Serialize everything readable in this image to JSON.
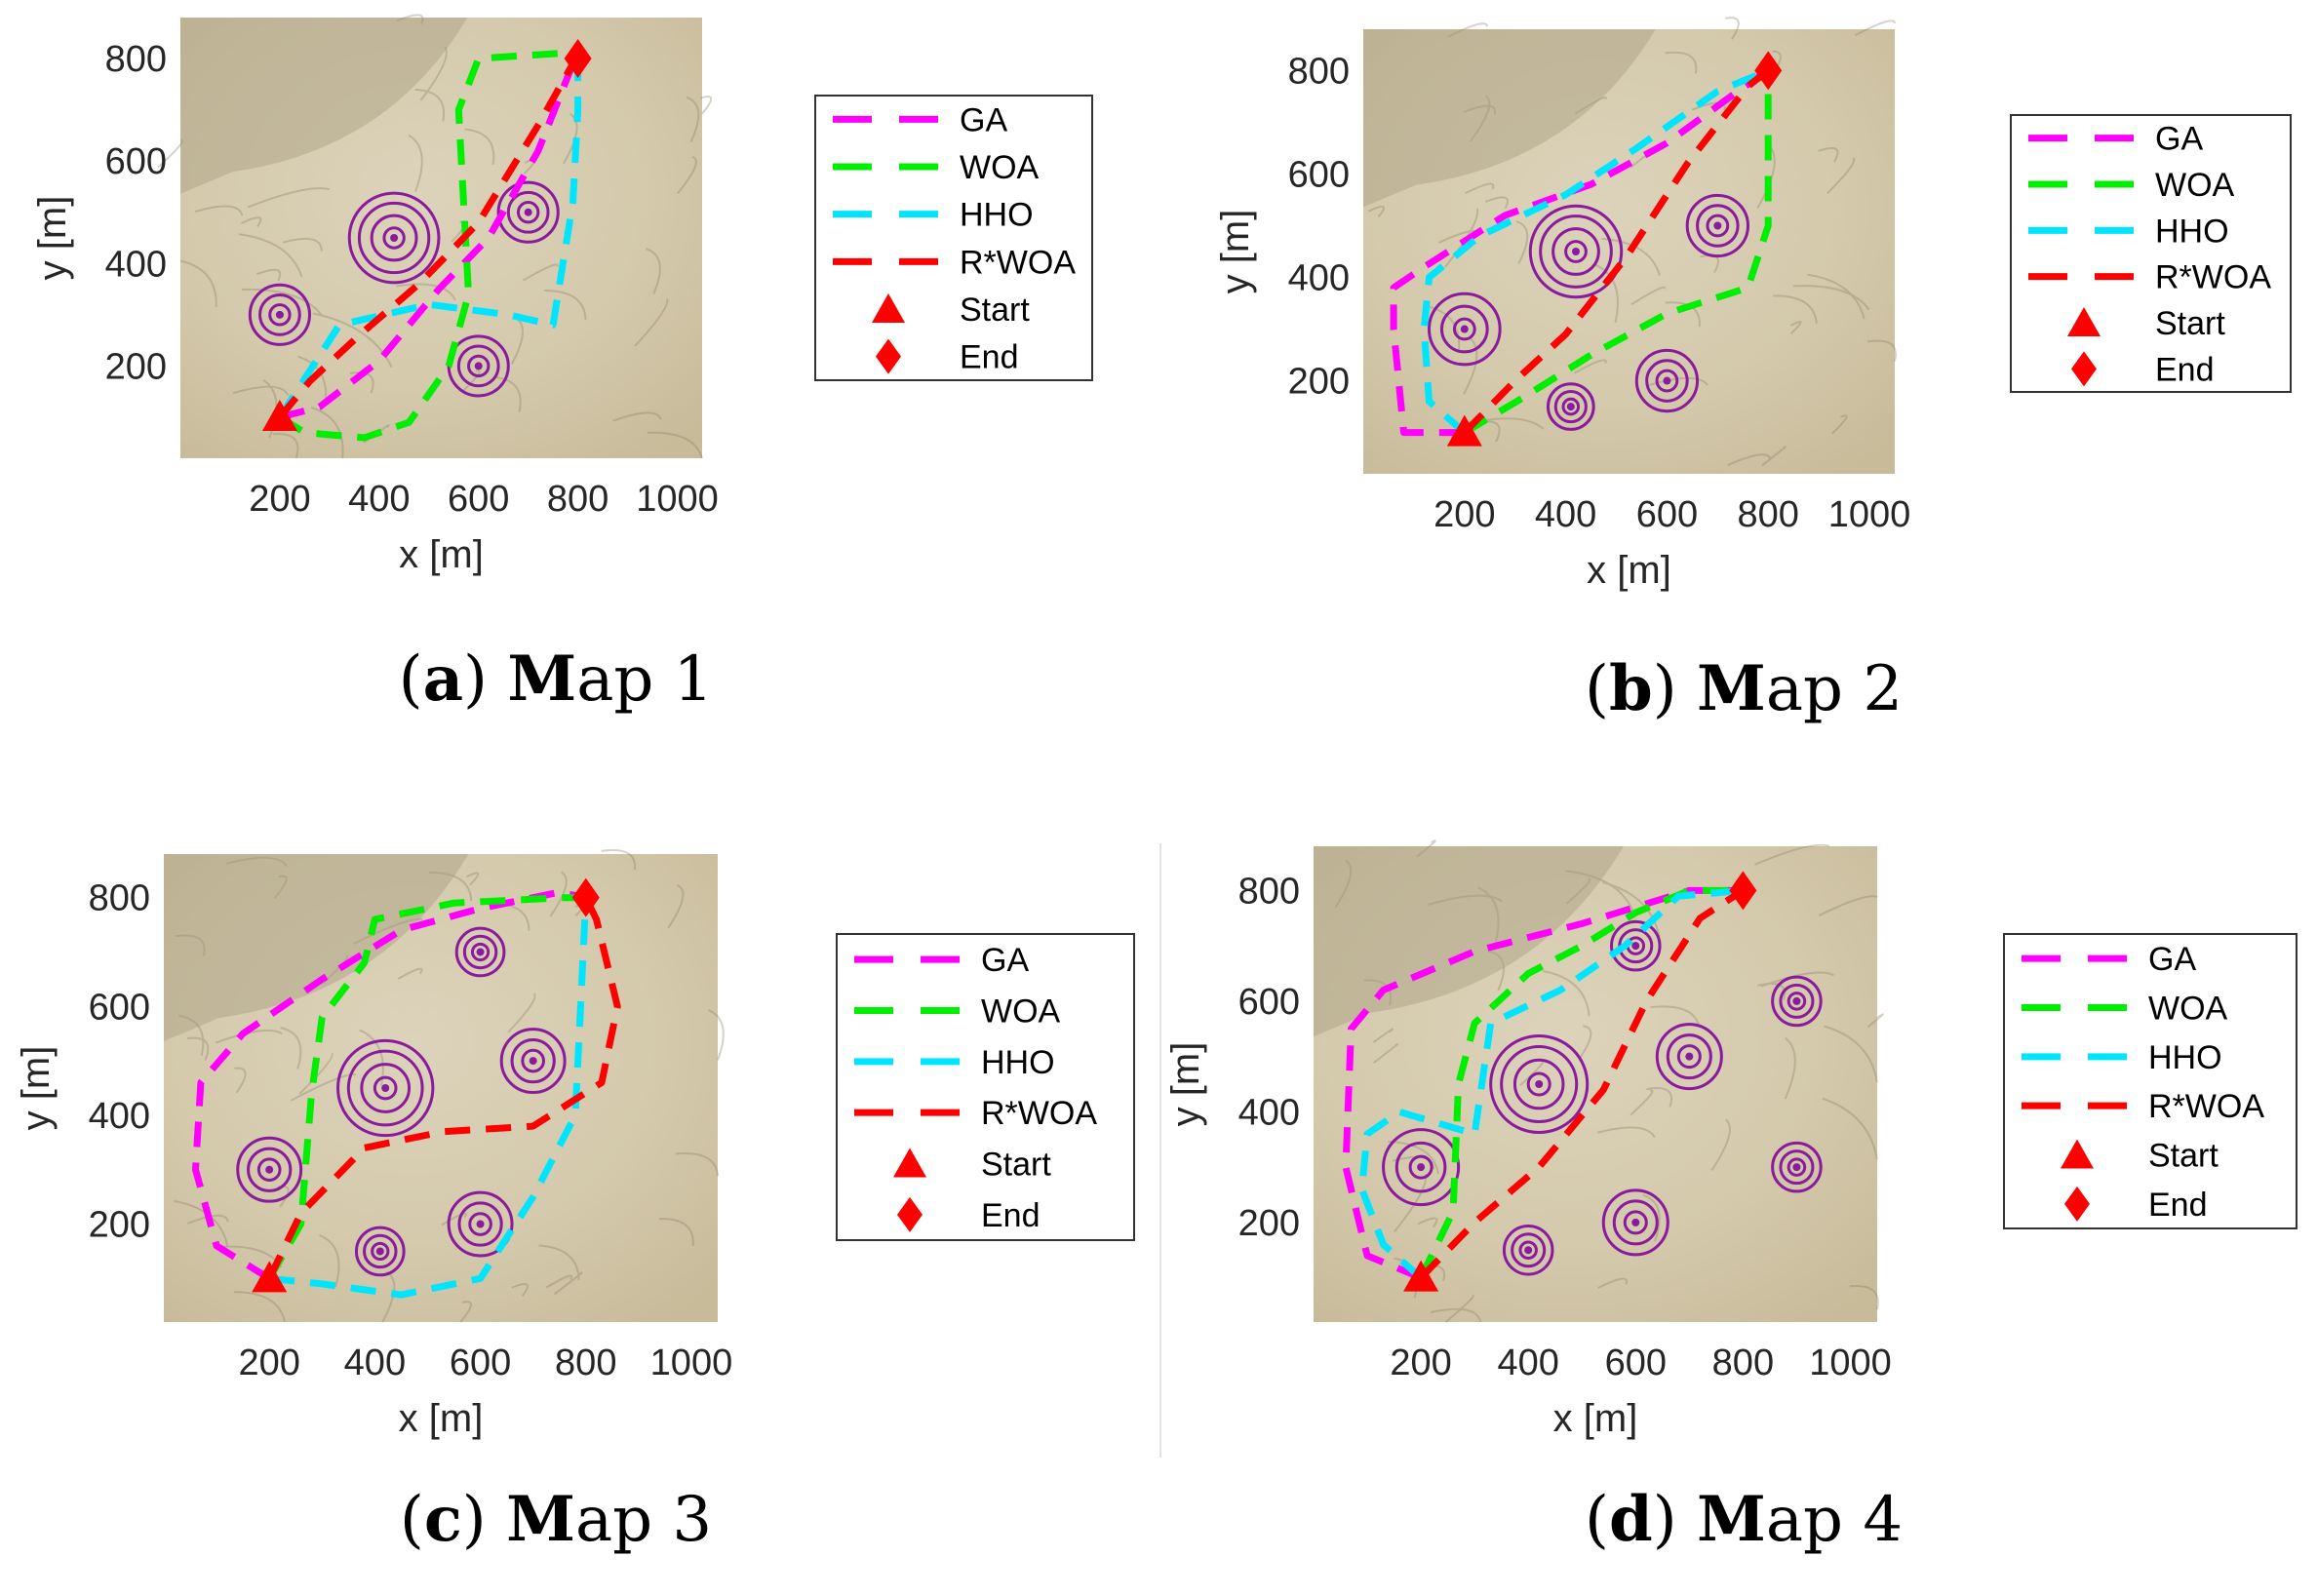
{
  "colors": {
    "GA": "#ff00ff",
    "WOA": "#00ee00",
    "HHO": "#00e5ff",
    "R*WOA": "#ff0000",
    "threat": "#8a1a9e",
    "terrain": "#d8ceb2"
  },
  "chart_data": [
    {
      "type": "line",
      "caption": {
        "open": "(",
        "letter": "a",
        "close": ") ",
        "bold": "M",
        "rest": "ap 1"
      },
      "xlabel": "x [m]",
      "ylabel": "y [m]",
      "xlim": [
        0,
        1050
      ],
      "ylim": [
        20,
        880
      ],
      "xticks": [
        200,
        400,
        600,
        800,
        1000
      ],
      "yticks": [
        200,
        400,
        600,
        800
      ],
      "legend_position": "right",
      "start": {
        "x": 200,
        "y": 100
      },
      "end": {
        "x": 800,
        "y": 800
      },
      "threats": [
        {
          "x": 200,
          "y": 300,
          "rings": [
            20,
            40,
            60
          ]
        },
        {
          "x": 430,
          "y": 450,
          "rings": [
            20,
            45,
            70,
            90
          ]
        },
        {
          "x": 600,
          "y": 200,
          "rings": [
            20,
            40,
            60
          ]
        },
        {
          "x": 700,
          "y": 500,
          "rings": [
            20,
            40,
            60
          ]
        }
      ],
      "series": [
        {
          "name": "GA",
          "points": [
            [
              200,
              100
            ],
            [
              280,
              120
            ],
            [
              400,
              210
            ],
            [
              520,
              350
            ],
            [
              620,
              450
            ],
            [
              720,
              620
            ],
            [
              790,
              790
            ],
            [
              800,
              800
            ]
          ]
        },
        {
          "name": "WOA",
          "points": [
            [
              200,
              100
            ],
            [
              250,
              70
            ],
            [
              370,
              60
            ],
            [
              460,
              90
            ],
            [
              540,
              200
            ],
            [
              580,
              340
            ],
            [
              560,
              700
            ],
            [
              600,
              800
            ],
            [
              760,
              810
            ],
            [
              800,
              800
            ]
          ]
        },
        {
          "name": "HHO",
          "points": [
            [
              200,
              100
            ],
            [
              240,
              160
            ],
            [
              320,
              280
            ],
            [
              500,
              320
            ],
            [
              660,
              300
            ],
            [
              750,
              280
            ],
            [
              790,
              520
            ],
            [
              800,
              700
            ],
            [
              800,
              800
            ]
          ]
        },
        {
          "name": "R*WOA",
          "points": [
            [
              200,
              100
            ],
            [
              260,
              170
            ],
            [
              360,
              260
            ],
            [
              480,
              360
            ],
            [
              600,
              480
            ],
            [
              720,
              670
            ],
            [
              790,
              790
            ],
            [
              800,
              800
            ]
          ]
        }
      ],
      "legend": [
        "GA",
        "WOA",
        "HHO",
        "R*WOA",
        "Start",
        "End"
      ]
    },
    {
      "type": "line",
      "caption": {
        "open": "(",
        "letter": "b",
        "close": ") ",
        "bold": "M",
        "rest": "ap 2"
      },
      "xlabel": "x [m]",
      "ylabel": "y [m]",
      "xlim": [
        0,
        1050
      ],
      "ylim": [
        20,
        880
      ],
      "xticks": [
        200,
        400,
        600,
        800,
        1000
      ],
      "yticks": [
        200,
        400,
        600,
        800
      ],
      "legend_position": "right",
      "start": {
        "x": 200,
        "y": 100
      },
      "end": {
        "x": 800,
        "y": 800
      },
      "threats": [
        {
          "x": 200,
          "y": 300,
          "rings": [
            20,
            45,
            70
          ]
        },
        {
          "x": 420,
          "y": 450,
          "rings": [
            20,
            45,
            70,
            90
          ]
        },
        {
          "x": 410,
          "y": 150,
          "rings": [
            15,
            30,
            45
          ]
        },
        {
          "x": 600,
          "y": 200,
          "rings": [
            20,
            40,
            60
          ]
        },
        {
          "x": 700,
          "y": 500,
          "rings": [
            20,
            40,
            60
          ]
        }
      ],
      "series": [
        {
          "name": "GA",
          "points": [
            [
              200,
              100
            ],
            [
              80,
              100
            ],
            [
              60,
              300
            ],
            [
              60,
              380
            ],
            [
              120,
              420
            ],
            [
              280,
              520
            ],
            [
              450,
              580
            ],
            [
              600,
              660
            ],
            [
              740,
              760
            ],
            [
              800,
              800
            ]
          ]
        },
        {
          "name": "WOA",
          "points": [
            [
              200,
              100
            ],
            [
              320,
              170
            ],
            [
              450,
              250
            ],
            [
              600,
              330
            ],
            [
              760,
              380
            ],
            [
              800,
              500
            ],
            [
              800,
              800
            ]
          ]
        },
        {
          "name": "HHO",
          "points": [
            [
              200,
              100
            ],
            [
              130,
              160
            ],
            [
              120,
              300
            ],
            [
              130,
              400
            ],
            [
              230,
              480
            ],
            [
              400,
              560
            ],
            [
              540,
              650
            ],
            [
              700,
              760
            ],
            [
              800,
              800
            ]
          ]
        },
        {
          "name": "R*WOA",
          "points": [
            [
              200,
              100
            ],
            [
              300,
              200
            ],
            [
              400,
              290
            ],
            [
              520,
              440
            ],
            [
              640,
              620
            ],
            [
              760,
              770
            ],
            [
              800,
              800
            ]
          ]
        }
      ],
      "legend": [
        "GA",
        "WOA",
        "HHO",
        "R*WOA",
        "Start",
        "End"
      ]
    },
    {
      "type": "line",
      "caption": {
        "open": "(",
        "letter": "c",
        "close": ") ",
        "bold": "M",
        "rest": "ap 3"
      },
      "xlabel": "x [m]",
      "ylabel": "y [m]",
      "xlim": [
        0,
        1050
      ],
      "ylim": [
        20,
        880
      ],
      "xticks": [
        200,
        400,
        600,
        800,
        1000
      ],
      "yticks": [
        200,
        400,
        600,
        800
      ],
      "legend_position": "right",
      "start": {
        "x": 200,
        "y": 100
      },
      "end": {
        "x": 800,
        "y": 800
      },
      "threats": [
        {
          "x": 200,
          "y": 300,
          "rings": [
            20,
            40,
            60
          ]
        },
        {
          "x": 420,
          "y": 450,
          "rings": [
            20,
            45,
            70,
            90
          ]
        },
        {
          "x": 410,
          "y": 150,
          "rings": [
            15,
            30,
            45
          ]
        },
        {
          "x": 600,
          "y": 200,
          "rings": [
            20,
            40,
            60
          ]
        },
        {
          "x": 600,
          "y": 700,
          "rings": [
            15,
            30,
            45
          ]
        },
        {
          "x": 700,
          "y": 500,
          "rings": [
            20,
            40,
            60
          ]
        }
      ],
      "series": [
        {
          "name": "GA",
          "points": [
            [
              200,
              100
            ],
            [
              100,
              160
            ],
            [
              60,
              300
            ],
            [
              70,
              460
            ],
            [
              150,
              550
            ],
            [
              300,
              650
            ],
            [
              450,
              740
            ],
            [
              600,
              780
            ],
            [
              750,
              810
            ],
            [
              800,
              800
            ]
          ]
        },
        {
          "name": "WOA",
          "points": [
            [
              200,
              100
            ],
            [
              260,
              200
            ],
            [
              280,
              440
            ],
            [
              300,
              580
            ],
            [
              380,
              680
            ],
            [
              400,
              760
            ],
            [
              550,
              790
            ],
            [
              760,
              800
            ],
            [
              800,
              800
            ]
          ]
        },
        {
          "name": "HHO",
          "points": [
            [
              200,
              100
            ],
            [
              300,
              90
            ],
            [
              450,
              70
            ],
            [
              600,
              100
            ],
            [
              700,
              250
            ],
            [
              780,
              400
            ],
            [
              790,
              600
            ],
            [
              800,
              800
            ]
          ]
        },
        {
          "name": "R*WOA",
          "points": [
            [
              200,
              100
            ],
            [
              260,
              220
            ],
            [
              380,
              340
            ],
            [
              530,
              370
            ],
            [
              700,
              380
            ],
            [
              830,
              460
            ],
            [
              860,
              600
            ],
            [
              820,
              760
            ],
            [
              800,
              800
            ]
          ]
        }
      ],
      "legend": [
        "GA",
        "WOA",
        "HHO",
        "R*WOA",
        "Start",
        "End"
      ]
    },
    {
      "type": "line",
      "caption": {
        "open": "(",
        "letter": "d",
        "close": ") ",
        "bold": "M",
        "rest": "ap 4"
      },
      "xlabel": "x [m]",
      "ylabel": "y [m]",
      "xlim": [
        0,
        1050
      ],
      "ylim": [
        20,
        880
      ],
      "xticks": [
        200,
        400,
        600,
        800,
        1000
      ],
      "yticks": [
        200,
        400,
        600,
        800
      ],
      "legend_position": "right",
      "start": {
        "x": 200,
        "y": 100
      },
      "end": {
        "x": 800,
        "y": 800
      },
      "threats": [
        {
          "x": 200,
          "y": 300,
          "rings": [
            20,
            45,
            70
          ]
        },
        {
          "x": 420,
          "y": 450,
          "rings": [
            20,
            45,
            70,
            90
          ]
        },
        {
          "x": 400,
          "y": 150,
          "rings": [
            15,
            30,
            45
          ]
        },
        {
          "x": 600,
          "y": 200,
          "rings": [
            20,
            40,
            60
          ]
        },
        {
          "x": 600,
          "y": 700,
          "rings": [
            15,
            30,
            45
          ]
        },
        {
          "x": 700,
          "y": 500,
          "rings": [
            20,
            40,
            60
          ]
        },
        {
          "x": 900,
          "y": 600,
          "rings": [
            15,
            30,
            45
          ]
        },
        {
          "x": 900,
          "y": 300,
          "rings": [
            15,
            30,
            45
          ]
        }
      ],
      "series": [
        {
          "name": "GA",
          "points": [
            [
              200,
              100
            ],
            [
              100,
              140
            ],
            [
              60,
              300
            ],
            [
              70,
              550
            ],
            [
              130,
              620
            ],
            [
              300,
              690
            ],
            [
              500,
              740
            ],
            [
              700,
              800
            ],
            [
              800,
              800
            ]
          ]
        },
        {
          "name": "WOA",
          "points": [
            [
              200,
              100
            ],
            [
              260,
              220
            ],
            [
              270,
              450
            ],
            [
              300,
              560
            ],
            [
              400,
              650
            ],
            [
              500,
              700
            ],
            [
              600,
              760
            ],
            [
              700,
              800
            ],
            [
              800,
              800
            ]
          ]
        },
        {
          "name": "HHO",
          "points": [
            [
              200,
              100
            ],
            [
              130,
              160
            ],
            [
              90,
              260
            ],
            [
              100,
              360
            ],
            [
              160,
              400
            ],
            [
              300,
              360
            ],
            [
              330,
              560
            ],
            [
              460,
              620
            ],
            [
              580,
              700
            ],
            [
              680,
              790
            ],
            [
              800,
              800
            ]
          ]
        },
        {
          "name": "R*WOA",
          "points": [
            [
              200,
              100
            ],
            [
              300,
              200
            ],
            [
              420,
              300
            ],
            [
              540,
              440
            ],
            [
              620,
              600
            ],
            [
              720,
              750
            ],
            [
              800,
              800
            ]
          ]
        }
      ],
      "legend": [
        "GA",
        "WOA",
        "HHO",
        "R*WOA",
        "Start",
        "End"
      ]
    }
  ]
}
